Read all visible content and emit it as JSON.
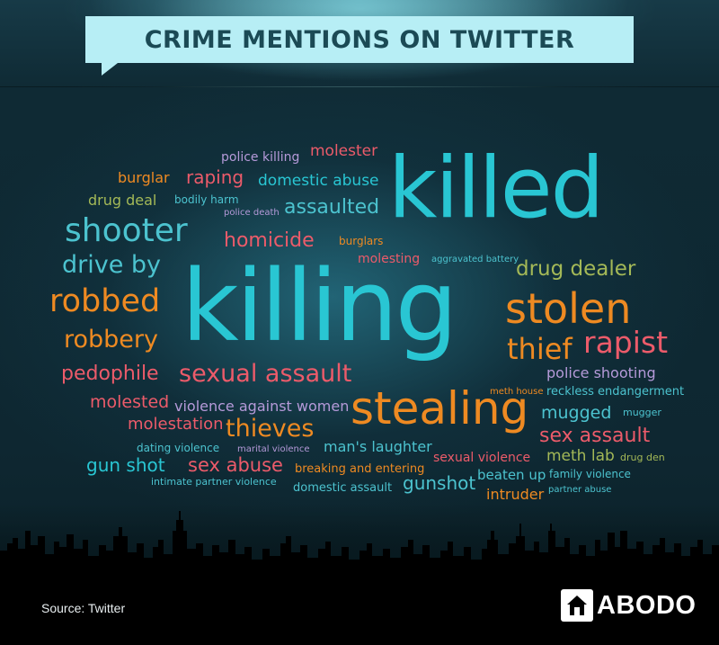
{
  "header": {
    "title": "CRIME MENTIONS ON TWITTER"
  },
  "footer": {
    "source": "Source: Twitter",
    "brand": "ABODO"
  },
  "palette": {
    "teal": "#29c6d3",
    "orange": "#ee8a22",
    "pink": "#ec5b6a",
    "green": "#a4b957",
    "purple": "#b59ad9",
    "light_teal": "#4cc3cf"
  },
  "words": [
    {
      "text": "police killing"
    },
    {
      "text": "molester"
    },
    {
      "text": "burglar"
    },
    {
      "text": "raping"
    },
    {
      "text": "domestic abuse"
    },
    {
      "text": "drug deal"
    },
    {
      "text": "bodily harm"
    },
    {
      "text": "police death"
    },
    {
      "text": "assaulted"
    },
    {
      "text": "killed"
    },
    {
      "text": "shooter"
    },
    {
      "text": "homicide"
    },
    {
      "text": "burglars"
    },
    {
      "text": "molesting"
    },
    {
      "text": "aggravated battery"
    },
    {
      "text": "drive by"
    },
    {
      "text": "drug dealer"
    },
    {
      "text": "robbed"
    },
    {
      "text": "killing"
    },
    {
      "text": "stolen"
    },
    {
      "text": "robbery"
    },
    {
      "text": "thief"
    },
    {
      "text": "rapist"
    },
    {
      "text": "pedophile"
    },
    {
      "text": "sexual assault"
    },
    {
      "text": "police shooting"
    },
    {
      "text": "molested"
    },
    {
      "text": "violence against women"
    },
    {
      "text": "stealing"
    },
    {
      "text": "meth house"
    },
    {
      "text": "reckless endangerment"
    },
    {
      "text": "molestation"
    },
    {
      "text": "thieves"
    },
    {
      "text": "mugged"
    },
    {
      "text": "mugger"
    },
    {
      "text": "dating violence"
    },
    {
      "text": "marital violence"
    },
    {
      "text": "man's laughter"
    },
    {
      "text": "sex assault"
    },
    {
      "text": "gun shot"
    },
    {
      "text": "sex abuse"
    },
    {
      "text": "breaking and entering"
    },
    {
      "text": "sexual violence"
    },
    {
      "text": "meth lab"
    },
    {
      "text": "drug den"
    },
    {
      "text": "intimate partner violence"
    },
    {
      "text": "domestic assault"
    },
    {
      "text": "gunshot"
    },
    {
      "text": "beaten up"
    },
    {
      "text": "family violence"
    },
    {
      "text": "intruder"
    },
    {
      "text": "partner abuse"
    }
  ]
}
